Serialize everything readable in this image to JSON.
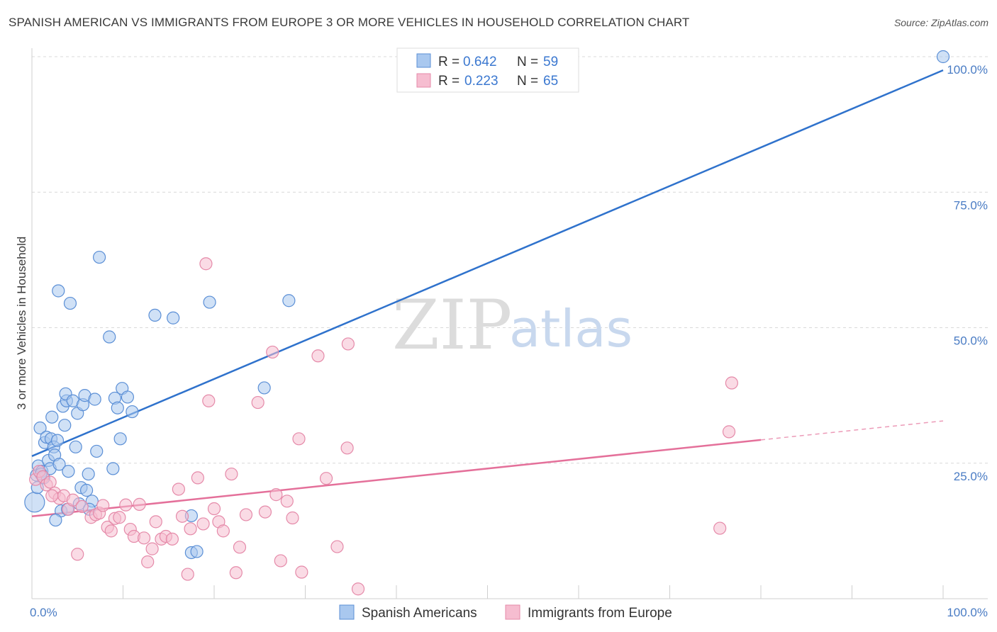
{
  "title": "SPANISH AMERICAN VS IMMIGRANTS FROM EUROPE 3 OR MORE VEHICLES IN HOUSEHOLD CORRELATION CHART",
  "source": "Source: ZipAtlas.com",
  "watermark": {
    "zip": "ZIP",
    "atlas": "atlas"
  },
  "colors": {
    "blue_fill": "#a9c8ef",
    "blue_stroke": "#5b8fd6",
    "blue_line": "#2f72cc",
    "pink_fill": "#f6bdd0",
    "pink_stroke": "#e58aa9",
    "pink_line": "#e4709a",
    "tick_text": "#4a7cc4",
    "grid": "#d8d8d8"
  },
  "legend": {
    "rows": [
      {
        "r_label": "R =",
        "r_value": "0.642",
        "n_label": "N =",
        "n_value": "59"
      },
      {
        "r_label": "R =",
        "r_value": "0.223",
        "n_label": "N =",
        "n_value": "65"
      }
    ]
  },
  "chart_data": {
    "type": "scatter",
    "title": "SPANISH AMERICAN VS IMMIGRANTS FROM EUROPE 3 OR MORE VEHICLES IN HOUSEHOLD CORRELATION CHART",
    "xlabel": "",
    "ylabel": "3 or more Vehicles in Household",
    "xlim": [
      0,
      100
    ],
    "ylim": [
      0,
      100
    ],
    "x_tick_labels": [
      "0.0%",
      "100.0%"
    ],
    "y_ticks": [
      25,
      50,
      75,
      100
    ],
    "y_tick_labels": [
      "25.0%",
      "50.0%",
      "75.0%",
      "100.0%"
    ],
    "grid": true,
    "legend_position": "top-center",
    "series": [
      {
        "name": "Spanish Americans",
        "r": 0.642,
        "n": 59,
        "trend": {
          "x": [
            0,
            100
          ],
          "y": [
            26.3,
            97.5
          ]
        },
        "points": [
          {
            "x": 0.3,
            "y": 17.8
          },
          {
            "x": 0.5,
            "y": 22.8
          },
          {
            "x": 0.7,
            "y": 24.5
          },
          {
            "x": 0.9,
            "y": 31.5
          },
          {
            "x": 1.1,
            "y": 23.5
          },
          {
            "x": 1.3,
            "y": 22.3
          },
          {
            "x": 1.4,
            "y": 28.8
          },
          {
            "x": 1.6,
            "y": 29.8
          },
          {
            "x": 1.8,
            "y": 25.5
          },
          {
            "x": 2.0,
            "y": 24.0
          },
          {
            "x": 2.1,
            "y": 29.5
          },
          {
            "x": 2.2,
            "y": 33.5
          },
          {
            "x": 2.4,
            "y": 28.0
          },
          {
            "x": 2.5,
            "y": 26.5
          },
          {
            "x": 2.8,
            "y": 29.2
          },
          {
            "x": 2.9,
            "y": 56.8
          },
          {
            "x": 3.0,
            "y": 24.8
          },
          {
            "x": 3.2,
            "y": 16.2
          },
          {
            "x": 3.4,
            "y": 35.5
          },
          {
            "x": 3.6,
            "y": 32.0
          },
          {
            "x": 3.8,
            "y": 36.5
          },
          {
            "x": 3.9,
            "y": 16.5
          },
          {
            "x": 3.7,
            "y": 37.8
          },
          {
            "x": 4.2,
            "y": 54.5
          },
          {
            "x": 4.5,
            "y": 36.5
          },
          {
            "x": 4.8,
            "y": 28.0
          },
          {
            "x": 5.0,
            "y": 34.2
          },
          {
            "x": 5.4,
            "y": 20.5
          },
          {
            "x": 5.6,
            "y": 35.8
          },
          {
            "x": 5.8,
            "y": 37.5
          },
          {
            "x": 6.0,
            "y": 20.0
          },
          {
            "x": 6.2,
            "y": 23.0
          },
          {
            "x": 6.6,
            "y": 18.0
          },
          {
            "x": 6.9,
            "y": 36.8
          },
          {
            "x": 7.1,
            "y": 27.2
          },
          {
            "x": 7.4,
            "y": 63.0
          },
          {
            "x": 8.5,
            "y": 48.3
          },
          {
            "x": 8.9,
            "y": 24.0
          },
          {
            "x": 9.1,
            "y": 37.0
          },
          {
            "x": 9.4,
            "y": 35.2
          },
          {
            "x": 9.7,
            "y": 29.5
          },
          {
            "x": 9.9,
            "y": 38.8
          },
          {
            "x": 10.5,
            "y": 37.2
          },
          {
            "x": 11.0,
            "y": 34.5
          },
          {
            "x": 13.5,
            "y": 52.3
          },
          {
            "x": 15.5,
            "y": 51.8
          },
          {
            "x": 17.5,
            "y": 15.3
          },
          {
            "x": 17.5,
            "y": 8.5
          },
          {
            "x": 18.1,
            "y": 8.7
          },
          {
            "x": 19.5,
            "y": 54.7
          },
          {
            "x": 25.5,
            "y": 38.9
          },
          {
            "x": 28.2,
            "y": 55.0
          },
          {
            "x": 2.6,
            "y": 14.5
          },
          {
            "x": 1.0,
            "y": 23.0
          },
          {
            "x": 4.0,
            "y": 23.5
          },
          {
            "x": 5.2,
            "y": 17.5
          },
          {
            "x": 6.3,
            "y": 16.5
          },
          {
            "x": 100,
            "y": 100
          },
          {
            "x": 0.6,
            "y": 20.5
          }
        ]
      },
      {
        "name": "Immigrants from Europe",
        "r": 0.223,
        "n": 65,
        "trend": {
          "x": [
            0,
            80
          ],
          "y": [
            15.2,
            29.3
          ]
        },
        "trend_dashed": {
          "x": [
            80,
            100
          ],
          "y": [
            29.3,
            32.8
          ]
        },
        "points": [
          {
            "x": 0.4,
            "y": 22.0
          },
          {
            "x": 0.8,
            "y": 23.5
          },
          {
            "x": 1.2,
            "y": 22.5
          },
          {
            "x": 1.6,
            "y": 21.0
          },
          {
            "x": 2.0,
            "y": 21.5
          },
          {
            "x": 2.5,
            "y": 19.5
          },
          {
            "x": 3.0,
            "y": 18.5
          },
          {
            "x": 3.5,
            "y": 19.0
          },
          {
            "x": 4.0,
            "y": 16.5
          },
          {
            "x": 4.5,
            "y": 18.2
          },
          {
            "x": 5.0,
            "y": 8.2
          },
          {
            "x": 5.5,
            "y": 17.0
          },
          {
            "x": 6.5,
            "y": 15.0
          },
          {
            "x": 7.0,
            "y": 15.5
          },
          {
            "x": 7.4,
            "y": 15.8
          },
          {
            "x": 7.8,
            "y": 17.2
          },
          {
            "x": 8.3,
            "y": 13.2
          },
          {
            "x": 8.7,
            "y": 12.5
          },
          {
            "x": 9.1,
            "y": 14.8
          },
          {
            "x": 9.6,
            "y": 15.0
          },
          {
            "x": 10.3,
            "y": 17.3
          },
          {
            "x": 10.8,
            "y": 12.8
          },
          {
            "x": 11.2,
            "y": 11.5
          },
          {
            "x": 11.8,
            "y": 17.4
          },
          {
            "x": 12.3,
            "y": 11.2
          },
          {
            "x": 12.7,
            "y": 6.8
          },
          {
            "x": 13.2,
            "y": 9.2
          },
          {
            "x": 13.6,
            "y": 14.2
          },
          {
            "x": 14.2,
            "y": 11.0
          },
          {
            "x": 14.7,
            "y": 11.5
          },
          {
            "x": 15.4,
            "y": 11.0
          },
          {
            "x": 16.1,
            "y": 20.2
          },
          {
            "x": 16.5,
            "y": 15.2
          },
          {
            "x": 17.1,
            "y": 4.5
          },
          {
            "x": 17.4,
            "y": 12.9
          },
          {
            "x": 18.2,
            "y": 22.3
          },
          {
            "x": 18.8,
            "y": 13.8
          },
          {
            "x": 19.4,
            "y": 36.5
          },
          {
            "x": 20.0,
            "y": 16.6
          },
          {
            "x": 20.5,
            "y": 14.2
          },
          {
            "x": 21.0,
            "y": 12.5
          },
          {
            "x": 21.9,
            "y": 23.0
          },
          {
            "x": 22.4,
            "y": 4.8
          },
          {
            "x": 22.8,
            "y": 9.5
          },
          {
            "x": 23.5,
            "y": 15.5
          },
          {
            "x": 24.8,
            "y": 36.2
          },
          {
            "x": 25.6,
            "y": 16.0
          },
          {
            "x": 26.4,
            "y": 45.5
          },
          {
            "x": 26.8,
            "y": 19.2
          },
          {
            "x": 27.3,
            "y": 7.0
          },
          {
            "x": 28.0,
            "y": 18.0
          },
          {
            "x": 28.6,
            "y": 14.9
          },
          {
            "x": 29.3,
            "y": 29.5
          },
          {
            "x": 29.6,
            "y": 4.9
          },
          {
            "x": 31.4,
            "y": 44.8
          },
          {
            "x": 32.3,
            "y": 22.2
          },
          {
            "x": 33.5,
            "y": 9.6
          },
          {
            "x": 34.6,
            "y": 27.8
          },
          {
            "x": 34.7,
            "y": 47.0
          },
          {
            "x": 35.8,
            "y": 1.8
          },
          {
            "x": 76.5,
            "y": 30.8
          },
          {
            "x": 76.8,
            "y": 39.8
          },
          {
            "x": 75.5,
            "y": 13.0
          },
          {
            "x": 19.1,
            "y": 61.8
          },
          {
            "x": 2.2,
            "y": 19.0
          }
        ]
      }
    ]
  },
  "bottom_legend": {
    "items": [
      "Spanish Americans",
      "Immigrants from Europe"
    ]
  }
}
